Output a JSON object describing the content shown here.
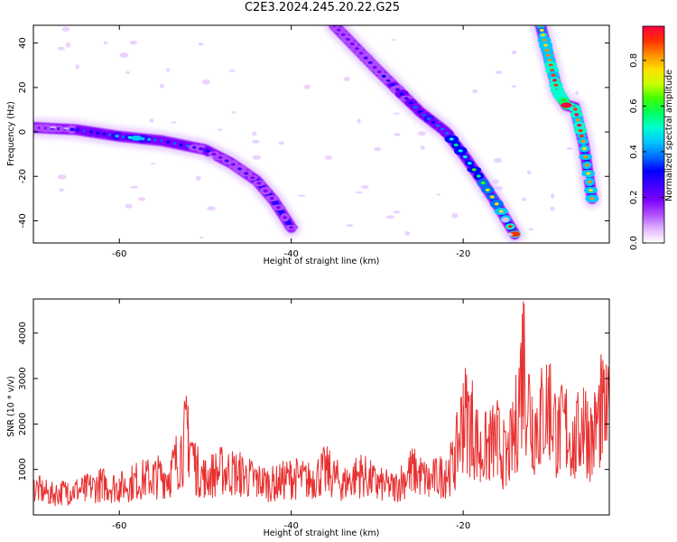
{
  "title": "C2E3.2024.245.20.22.G25",
  "chart_data": [
    {
      "type": "heatmap",
      "xlabel": "Height of straight line (km)",
      "ylabel": "Frequency (Hz)",
      "xlim": [
        -70,
        -3
      ],
      "ylim": [
        -50,
        48
      ],
      "x_ticks": [
        -60,
        -40,
        -20
      ],
      "y_ticks": [
        40,
        20,
        0,
        -20,
        -40
      ],
      "colorbar": {
        "label": "Normalized spectral amplitude",
        "range": [
          0,
          0.95
        ],
        "ticks": [
          0.0,
          0.2,
          0.4,
          0.6,
          0.8
        ],
        "colormap": [
          "#ffffff",
          "#e0b3ff",
          "#b04cff",
          "#7a00ff",
          "#3f00ff",
          "#0000ff",
          "#0070ff",
          "#00c8ff",
          "#00ffd0",
          "#00ff60",
          "#40ff00",
          "#c8ff00",
          "#ffe000",
          "#ff9000",
          "#ff3000",
          "#ff0040"
        ]
      },
      "ridges": [
        {
          "x": [
            -70,
            -65,
            -60,
            -55,
            -50,
            -47,
            -44,
            -42,
            -40
          ],
          "y": [
            2,
            1,
            -2,
            -4,
            -8,
            -14,
            -22,
            -31,
            -43
          ],
          "peak_x": -58,
          "peak_amplitude": 0.45
        },
        {
          "x": [
            -35,
            -30,
            -25,
            -22,
            -20,
            -18,
            -16,
            -14
          ],
          "y": [
            48,
            28,
            9,
            0,
            -10,
            -21,
            -33,
            -46
          ],
          "peak_x": -14,
          "peak_amplitude": 0.9
        },
        {
          "x": [
            -11,
            -10,
            -9,
            -8,
            -7,
            -6,
            -5
          ],
          "y": [
            48,
            33,
            18,
            12,
            11,
            -5,
            -30
          ],
          "peak_x": -8,
          "peak_amplitude": 0.95
        }
      ]
    },
    {
      "type": "line",
      "xlabel": "Height of straight line (km)",
      "ylabel": "SNR (10 * v/v)",
      "xlim": [
        -70,
        -3
      ],
      "ylim": [
        0,
        4750
      ],
      "x_ticks": [
        -60,
        -40,
        -20
      ],
      "y_ticks": [
        1000,
        2000,
        3000,
        4000
      ],
      "color": "#e83030",
      "series": [
        {
          "x": [
            -70,
            -68,
            -66,
            -64,
            -62,
            -60,
            -58,
            -56,
            -54,
            -52,
            -51,
            -50,
            -48,
            -46,
            -44,
            -42,
            -40,
            -38,
            -36,
            -34,
            -32,
            -30,
            -28,
            -26,
            -24,
            -22,
            -21,
            -20,
            -19,
            -18,
            -17,
            -16,
            -15,
            -14,
            -13,
            -12,
            -11,
            -10,
            -9,
            -8,
            -7,
            -6,
            -5,
            -4,
            -3
          ],
          "y": [
            800,
            600,
            700,
            750,
            900,
            800,
            1000,
            1100,
            1200,
            2400,
            1300,
            1100,
            1300,
            1200,
            1000,
            900,
            1100,
            1000,
            1300,
            900,
            1200,
            900,
            800,
            1300,
            1000,
            1200,
            1500,
            2900,
            2700,
            1800,
            2000,
            2200,
            1600,
            2300,
            4700,
            2600,
            2800,
            3300,
            2300,
            2600,
            2000,
            2800,
            2200,
            3000,
            2700
          ]
        }
      ]
    }
  ]
}
